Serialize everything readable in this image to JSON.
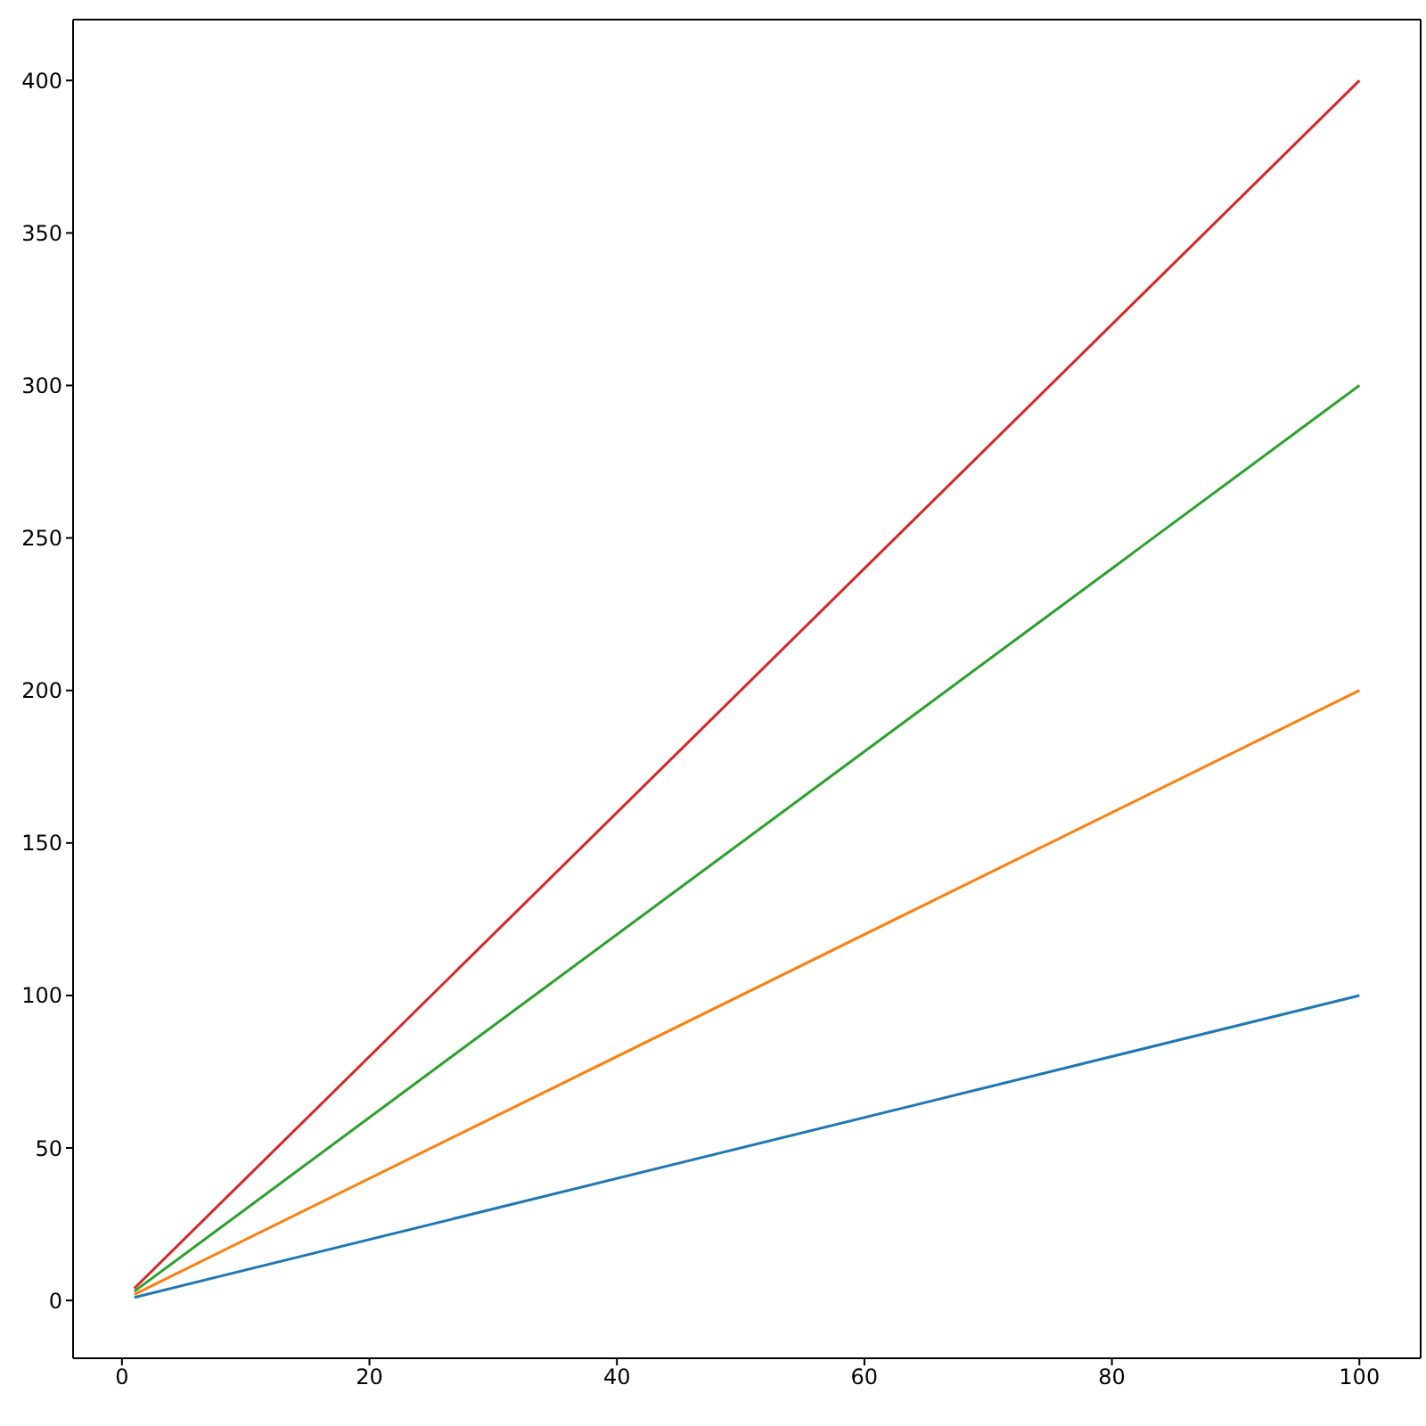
{
  "chart_data": {
    "type": "line",
    "x": [
      1,
      100
    ],
    "series": [
      {
        "color": "#1f77b4",
        "values": [
          1,
          100
        ]
      },
      {
        "color": "#ff7f0e",
        "values": [
          2,
          200
        ]
      },
      {
        "color": "#2ca02c",
        "values": [
          3,
          300
        ]
      },
      {
        "color": "#d62728",
        "values": [
          4,
          400
        ]
      }
    ],
    "xlim": [
      -3.95,
      104.95
    ],
    "xticks": [
      0,
      20,
      40,
      60,
      80,
      100
    ],
    "ylim": [
      -18.95,
      419.95
    ],
    "yticks": [
      0,
      50,
      100,
      150,
      200,
      250,
      300,
      350,
      400
    ],
    "grid": false,
    "legend": false,
    "marker": "none",
    "line_style": "solid"
  }
}
